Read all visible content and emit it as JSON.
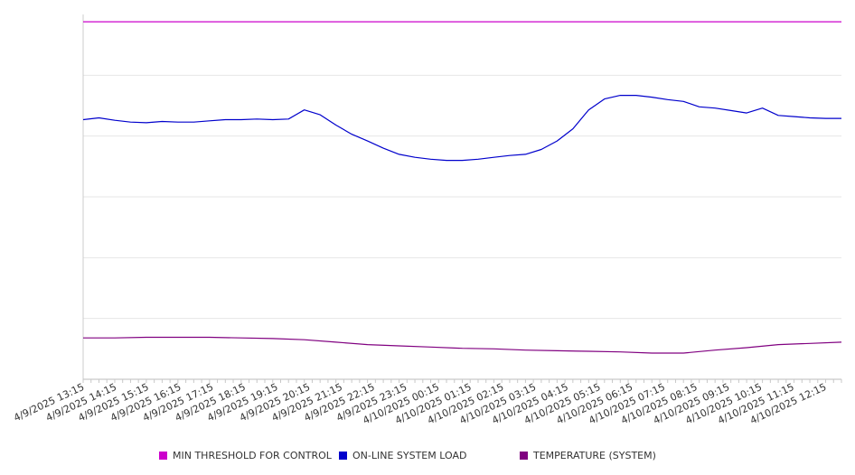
{
  "chart_data": {
    "type": "line",
    "title": "",
    "xlabel": "",
    "ylabel": "",
    "grid": true,
    "legend_position": "bottom",
    "x_tick_labels": [
      "4/9/2025 13:15",
      "4/9/2025 14:15",
      "4/9/2025 15:15",
      "4/9/2025 16:15",
      "4/9/2025 17:15",
      "4/9/2025 18:15",
      "4/9/2025 19:15",
      "4/9/2025 20:15",
      "4/9/2025 21:15",
      "4/9/2025 22:15",
      "4/9/2025 23:15",
      "4/10/2025 00:15",
      "4/10/2025 01:15",
      "4/10/2025 02:15",
      "4/10/2025 03:15",
      "4/10/2025 04:15",
      "4/10/2025 05:15",
      "4/10/2025 06:15",
      "4/10/2025 07:15",
      "4/10/2025 08:15",
      "4/10/2025 09:15",
      "4/10/2025 10:15",
      "4/10/2025 11:15",
      "4/10/2025 12:15"
    ],
    "x_range_hours": [
      0,
      24
    ],
    "ylim": [
      0,
      600
    ],
    "y_gridlines": [
      100,
      200,
      300,
      400,
      500
    ],
    "series": [
      {
        "name": "MIN THRESHOLD FOR CONTROL",
        "color": "#cc00cc",
        "x": [
          0,
          24
        ],
        "y": [
          588,
          588
        ]
      },
      {
        "name": "ON-LINE SYSTEM LOAD",
        "color": "#0000cc",
        "x": [
          0,
          0.5,
          1,
          1.5,
          2,
          2.5,
          3,
          3.5,
          4,
          4.5,
          5,
          5.5,
          6,
          6.5,
          7,
          7.5,
          8,
          8.5,
          9,
          9.5,
          10,
          10.5,
          11,
          11.5,
          12,
          12.5,
          13,
          13.5,
          14,
          14.5,
          15,
          15.5,
          16,
          16.5,
          17,
          17.5,
          18,
          18.5,
          19,
          19.5,
          20,
          20.5,
          21,
          21.5,
          22,
          22.5,
          23,
          23.5,
          24
        ],
        "y": [
          427,
          430,
          426,
          423,
          422,
          424,
          423,
          423,
          425,
          427,
          427,
          428,
          427,
          428,
          443,
          435,
          418,
          403,
          392,
          380,
          370,
          365,
          362,
          360,
          360,
          362,
          365,
          368,
          370,
          378,
          392,
          412,
          443,
          461,
          467,
          467,
          464,
          460,
          457,
          448,
          446,
          442,
          438,
          446,
          434,
          432,
          430,
          429,
          429
        ]
      },
      {
        "name": "TEMPERATURE (SYSTEM)",
        "color": "#800080",
        "x": [
          0,
          1,
          2,
          3,
          4,
          5,
          6,
          7,
          8,
          9,
          10,
          11,
          12,
          13,
          14,
          15,
          16,
          17,
          18,
          19,
          20,
          21,
          22,
          23,
          24
        ],
        "y": [
          68,
          68,
          69,
          69,
          69,
          68,
          67,
          65,
          61,
          57,
          55,
          53,
          51,
          50,
          48,
          47,
          46,
          45,
          43,
          43,
          48,
          52,
          57,
          59,
          61
        ]
      }
    ]
  }
}
